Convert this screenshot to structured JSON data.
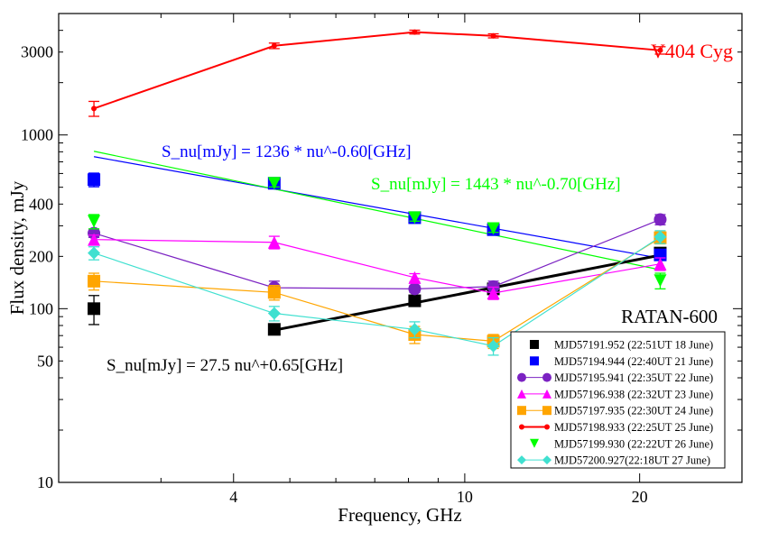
{
  "chart_data": {
    "type": "scatter",
    "title": "V404 Cyg",
    "xlabel": "Frequency,  GHz",
    "ylabel": "Flux density, mJy",
    "xscale": "log",
    "yscale": "log",
    "xlim": [
      2,
      30
    ],
    "ylim": [
      10,
      5000
    ],
    "xticks": [
      4,
      10,
      20
    ],
    "yticks": [
      10,
      50,
      100,
      200,
      400,
      1000,
      3000
    ],
    "grid": false,
    "legend_placement": "bottom-right",
    "x": [
      2.3,
      4.7,
      8.2,
      11.2,
      21.7
    ],
    "series": [
      {
        "name": "MJD57191.952 (22:51UT 18 June)",
        "color": "#000000",
        "marker": "square",
        "connected": false,
        "values": [
          100,
          76,
          111,
          130,
          209
        ],
        "yerr": [
          19,
          4,
          6,
          7,
          12
        ]
      },
      {
        "name": "MJD57194.944 (22:40UT 21 June)",
        "color": "#0000ff",
        "marker": "square",
        "connected": false,
        "values": [
          553,
          527,
          334,
          285,
          204
        ],
        "yerr": [
          50,
          25,
          15,
          14,
          12
        ]
      },
      {
        "name": "MJD57195.941 (22:35UT 22 June)",
        "color": "#7b22c2",
        "marker": "circle",
        "connected": true,
        "values": [
          272,
          132,
          130,
          134,
          326
        ],
        "yerr": [
          15,
          12,
          6,
          10,
          22
        ]
      },
      {
        "name": "MJD57196.938 (22:32UT 23 June)",
        "color": "#ff00ff",
        "marker": "triangle-up",
        "connected": true,
        "values": [
          250,
          241,
          151,
          123,
          181
        ],
        "yerr": [
          15,
          20,
          8,
          10,
          15
        ]
      },
      {
        "name": "MJD57197.935 (22:30UT 24 June)",
        "color": "#ffa500",
        "marker": "square",
        "connected": true,
        "values": [
          144,
          124,
          71,
          65,
          256
        ],
        "yerr": [
          16,
          12,
          8,
          6,
          20
        ]
      },
      {
        "name": "MJD57198.933 (22:25UT 25 June)",
        "color": "#ff0000",
        "marker": "star",
        "connected": true,
        "values": [
          1420,
          3260,
          3910,
          3720,
          3070
        ],
        "yerr": [
          140,
          120,
          100,
          100,
          150
        ]
      },
      {
        "name": "MJD57199.930 (22:22UT 26 June)",
        "color": "#00ff00",
        "marker": "triangle-down",
        "connected": false,
        "values": [
          318,
          527,
          334,
          289,
          145
        ],
        "yerr": [
          30,
          25,
          15,
          14,
          15
        ]
      },
      {
        "name": "MJD57200.927(22:18UT 27 June)",
        "color": "#40e0d0",
        "marker": "diamond",
        "connected": true,
        "values": [
          209,
          94,
          76,
          61,
          259
        ],
        "yerr": [
          18,
          9,
          8,
          7,
          22
        ]
      }
    ],
    "fits": [
      {
        "label": "S_nu[mJy] = 1236 * nu^-0.60[GHz]",
        "color": "#0000ff",
        "amplitude": 1236,
        "index": -0.6,
        "xrange": [
          2.3,
          21.7
        ]
      },
      {
        "label": "S_nu[mJy] = 1443 * nu^-0.70[GHz]",
        "color": "#00ff00",
        "amplitude": 1443,
        "index": -0.7,
        "xrange": [
          2.3,
          21.7
        ]
      },
      {
        "label": "S_nu[mJy]  = 27.5 nu^+0.65[GHz]",
        "color": "#000000",
        "amplitude": 27.5,
        "index": 0.65,
        "xrange": [
          4.7,
          21.7
        ]
      }
    ],
    "annotations": {
      "source": "V404 Cyg",
      "telescope": "RATAN-600"
    }
  }
}
